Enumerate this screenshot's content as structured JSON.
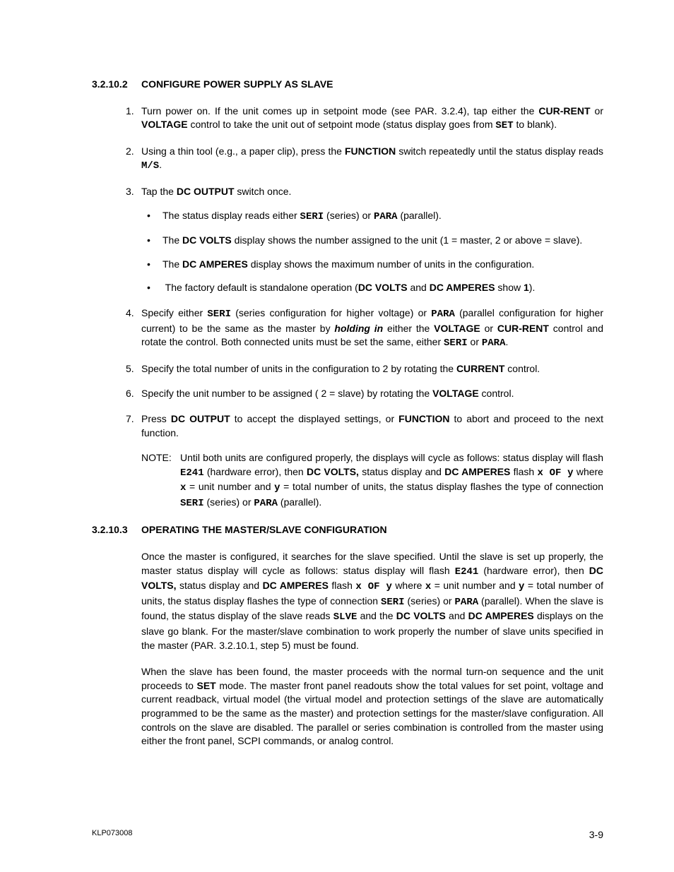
{
  "section1": {
    "number": "3.2.10.2",
    "title": "CONFIGURE POWER SUPPLY AS SLAVE"
  },
  "steps": {
    "s1": {
      "num": "1.",
      "t1": "Turn power on. If the unit comes up in setpoint mode (see PAR. 3.2.4), tap either the ",
      "b1": "CUR-RENT",
      "t2": " or ",
      "b2": "VOLTAGE",
      "t3": " control to take the unit out of setpoint mode (status display goes from ",
      "m1": "SET",
      "t4": " to blank)."
    },
    "s2": {
      "num": "2.",
      "t1": "Using a thin tool (e.g., a paper clip), press the ",
      "b1": "FUNCTION",
      "t2": " switch repeatedly until the status display reads ",
      "m1": "M/S",
      "t3": "."
    },
    "s3": {
      "num": "3.",
      "t1": "Tap the ",
      "b1": "DC OUTPUT",
      "t2": " switch once.",
      "sub1": {
        "t1": "The status display reads either ",
        "m1": "SERI",
        "t2": " (series) or ",
        "m2": "PARA",
        "t3": " (parallel)."
      },
      "sub2": {
        "t1": "The ",
        "b1": "DC VOLTS",
        "t2": " display shows the number assigned to the unit (1 = master, 2 or above = slave)."
      },
      "sub3": {
        "t1": "The ",
        "b1": "DC AMPERES",
        "t2": " display shows the maximum number of units in the configuration."
      },
      "sub4": {
        "t1": " The factory default is standalone operation (",
        "b1": "DC VOLTS",
        "t2": " and ",
        "b2": "DC AMPERES",
        "t3": " show ",
        "b3": "1",
        "t4": ")."
      }
    },
    "s4": {
      "num": "4.",
      "t1": "Specify either ",
      "m1": "SERI",
      "t2": " (series configuration for higher voltage) or ",
      "m2": "PARA",
      "t3": " (parallel configuration for higher current) to be the same as the master by ",
      "bi1": "holding in",
      "t4": " either the ",
      "b1": "VOLTAGE",
      "t5": " or ",
      "b2": "CUR-RENT",
      "t6": " control and rotate the control. Both connected units must be set the same, either ",
      "m3": "SERI",
      "t7": " or ",
      "m4": "PARA",
      "t8": "."
    },
    "s5": {
      "num": "5.",
      "t1": "Specify the total number of units in the configuration to 2 by rotating the ",
      "b1": "CURRENT",
      "t2": " control."
    },
    "s6": {
      "num": "6.",
      "t1": "Specify the unit number to be assigned ( 2 = slave) by rotating the ",
      "b1": "VOLTAGE",
      "t2": " control."
    },
    "s7": {
      "num": "7.",
      "t1": "Press ",
      "b1": "DC OUTPUT",
      "t2": " to accept the displayed settings, or ",
      "b2": "FUNCTION",
      "t3": " to abort and proceed to the next function."
    }
  },
  "note": {
    "label": "NOTE:",
    "t1": "Until both units are configured properly, the displays will cycle as follows: status display will flash ",
    "m1": "E241",
    "t2": " (hardware error), then ",
    "b1": "DC VOLTS,",
    "t3": " status display and ",
    "b2": "DC AMPERES",
    "t4": " flash ",
    "m2": "x OF y",
    "t5": " where ",
    "m3": "x",
    "t6": " = unit number and ",
    "m4": "y",
    "t7": " = total number of units, the status display flashes the type of connection ",
    "m5": "SERI",
    "t8": " (series) or ",
    "m6": "PARA",
    "t9": " (parallel)."
  },
  "section2": {
    "number": "3.2.10.3",
    "title": "OPERATING THE MASTER/SLAVE CONFIGURATION"
  },
  "para1": {
    "t1": "Once the master is configured, it searches for the slave specified. Until the slave is set up properly, the master status display will cycle as follows: status display will flash ",
    "m1": "E241",
    "t2": " (hardware error), then ",
    "b1": "DC VOLTS,",
    "t3": " status display and ",
    "b2": "DC AMPERES",
    "t4": " flash ",
    "m2": "x OF y",
    "t5": " where ",
    "m3": "x",
    "t6": " = unit number and ",
    "m4": "y",
    "t7": " = total number of units, the status display flashes the type of connection ",
    "m5": "SERI",
    "t8": " (series) or ",
    "m6": "PARA",
    "t9": " (parallel). When the slave is found, the status display of the slave reads ",
    "m7": "SLVE",
    "t10": " and the ",
    "b3": "DC VOLTS",
    "t11": " and ",
    "b4": "DC AMPERES",
    "t12": " displays on the slave go blank. For the master/slave combination to work properly the number of slave units specified in the master (PAR. 3.2.10.1, step 5) must be found."
  },
  "para2": {
    "t1": "When the slave has been found, the master proceeds with the normal turn-on sequence and the unit proceeds to ",
    "b1": "SET",
    "t2": " mode. The master front panel readouts show the total values for set point, voltage and current readback, virtual model (the virtual model and protection settings of the slave are automatically programmed to be the same as the master) and protection settings for the master/slave configuration. All controls on the slave are disabled. The parallel or series combination is controlled from the master using either the front panel, SCPI commands, or analog control."
  },
  "footer": {
    "left": "KLP073008",
    "right": "3-9"
  }
}
